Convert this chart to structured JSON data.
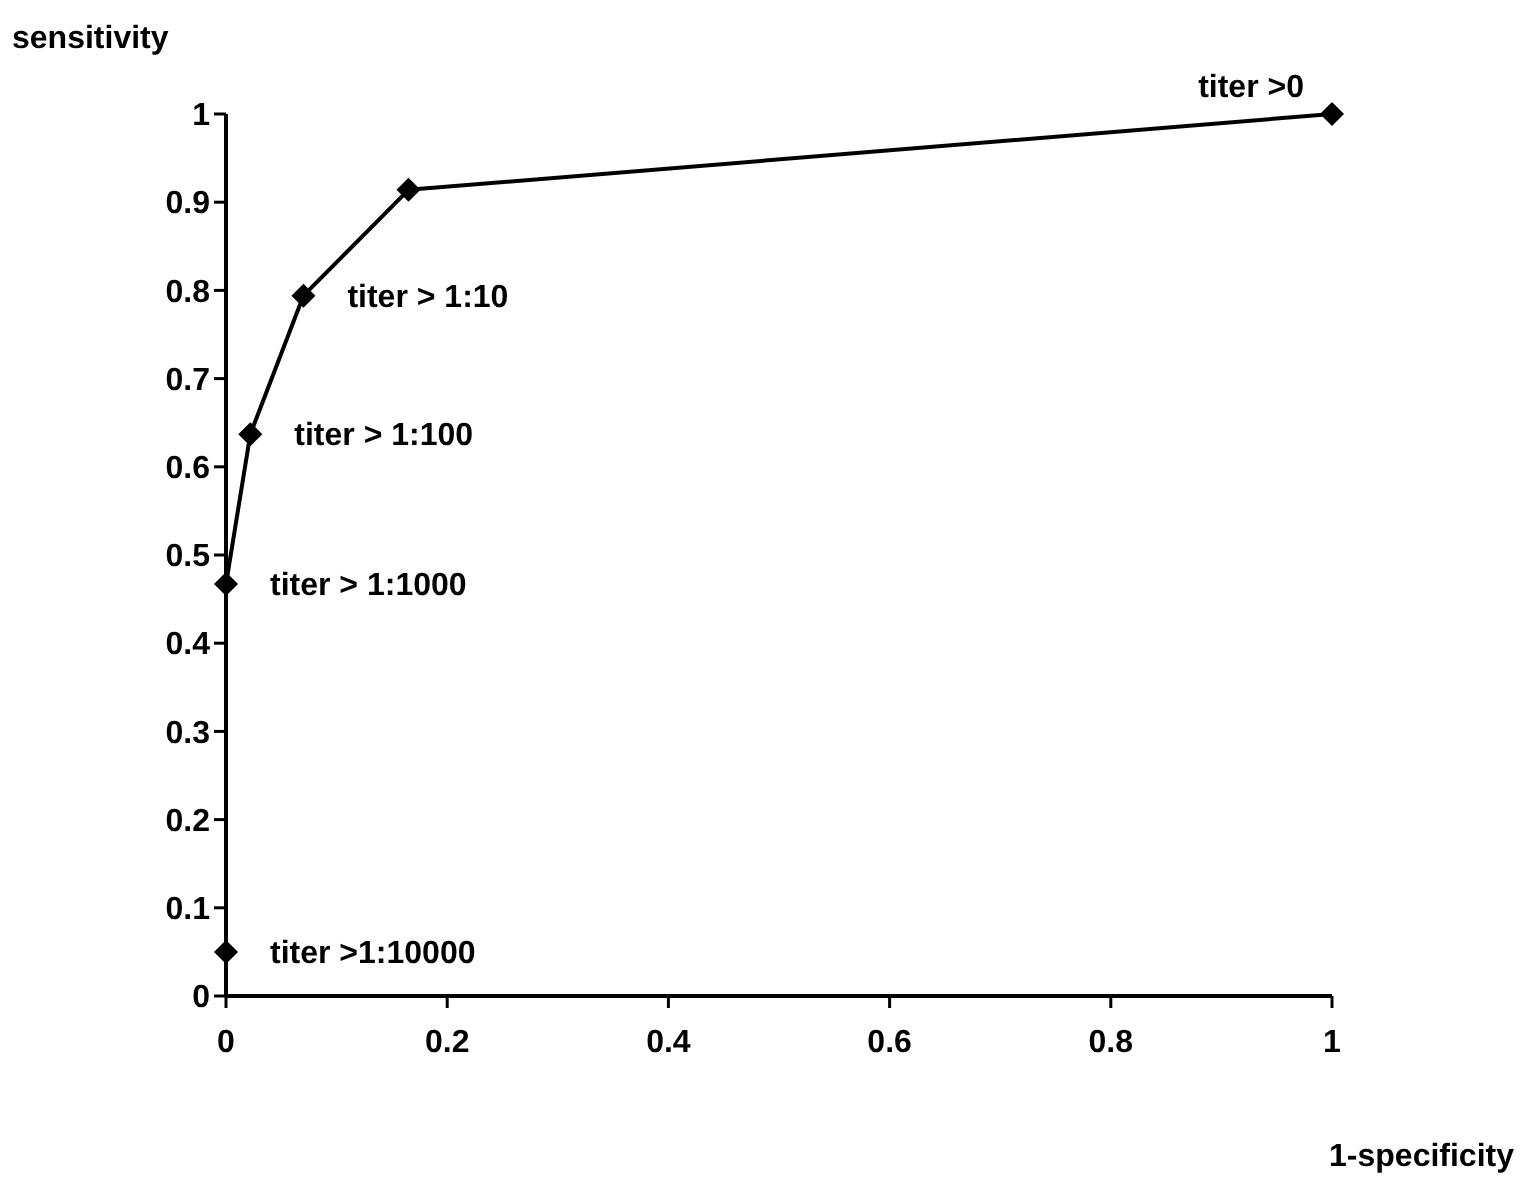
{
  "chart_data": {
    "type": "line",
    "xlabel": "1-specificity",
    "ylabel": "sensitivity",
    "x": [
      0,
      0,
      0.022,
      0.07,
      0.165,
      1
    ],
    "series": [
      {
        "color": "#000000",
        "values": [
          0.05,
          0.467,
          0.637,
          0.794,
          0.914,
          1
        ]
      }
    ],
    "xlim": [
      0,
      1
    ],
    "xticks": [
      0,
      0.2,
      0.4,
      0.6,
      0.8,
      1
    ],
    "ylim": [
      0,
      1
    ],
    "yticks": [
      0,
      0.1,
      0.2,
      0.3,
      0.4,
      0.5,
      0.6,
      0.7,
      0.8,
      0.9,
      1
    ],
    "marker": "diamond",
    "line_style": "solid",
    "grid": false,
    "annotations": [
      {
        "text": "titer >1:10000",
        "x": 0,
        "y": 0.05
      },
      {
        "text": "titer > 1:1000",
        "x": 0,
        "y": 0.467
      },
      {
        "text": "titer > 1:100",
        "x": 0.022,
        "y": 0.637
      },
      {
        "text": "titer > 1:10",
        "x": 0.07,
        "y": 0.794
      },
      {
        "text": "titer >0",
        "x": 1,
        "y": 1
      }
    ]
  }
}
